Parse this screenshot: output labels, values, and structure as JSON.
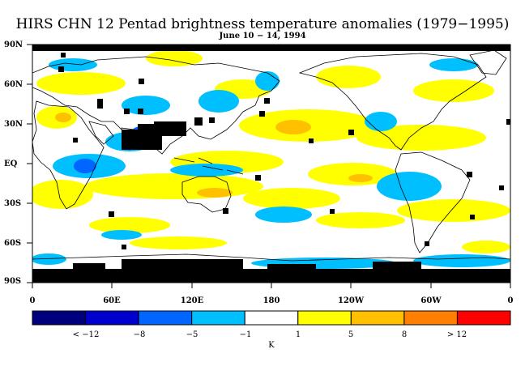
{
  "header": {
    "title": "HIRS CHN 12 Pentad brightness temperature anomalies (1979−1995)",
    "subtitle": "June 10 − 14, 1994"
  },
  "map": {
    "lat_labels": [
      "90N",
      "60N",
      "30N",
      "EQ",
      "30S",
      "60S",
      "90S"
    ],
    "lon_labels": [
      "0",
      "60E",
      "120E",
      "180",
      "120W",
      "60W",
      "0"
    ]
  },
  "colorbar": {
    "labels": [
      "< −12",
      "−8",
      "−5",
      "−1",
      "1",
      "5",
      "8",
      "> 12"
    ],
    "unit": "K",
    "colors": [
      "#00007f",
      "#0000cd",
      "#0066ff",
      "#00bfff",
      "#ffffff",
      "#ffff00",
      "#ffc000",
      "#ff8000",
      "#ff0000"
    ]
  }
}
